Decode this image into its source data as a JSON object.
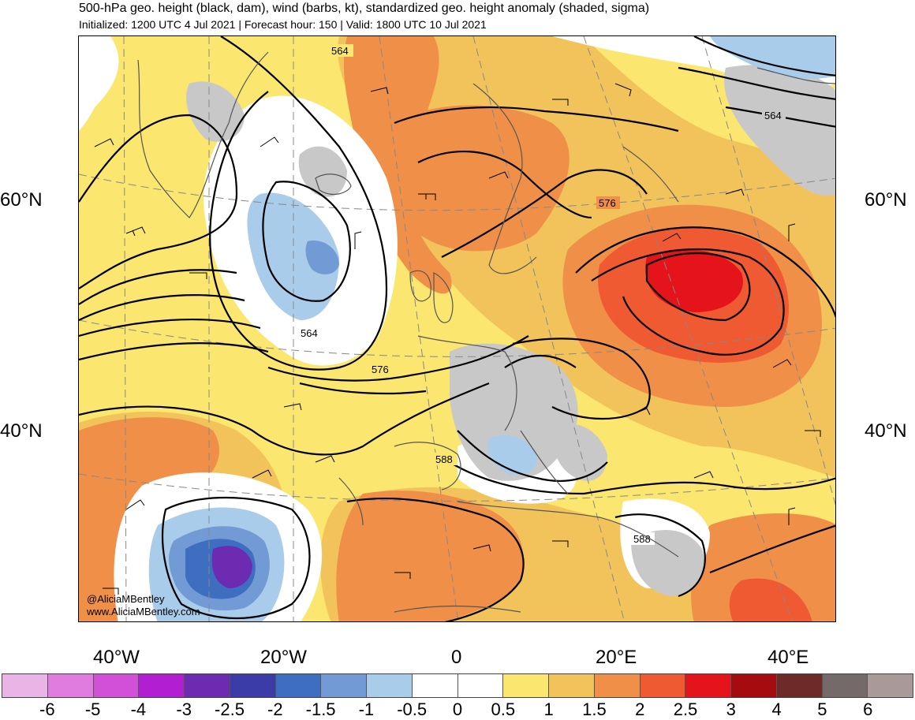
{
  "header": {
    "title": "500-hPa geo. height (black, dam), wind (barbs, kt), standardized geo. height anomaly (shaded, sigma)",
    "subtitle": "Initialized: 1200 UTC 4 Jul 2021 | Forecast hour: 150 | Valid: 1800 UTC 10 Jul 2021"
  },
  "map": {
    "lat_labels": [
      "60°N",
      "40°N"
    ],
    "lon_labels": [
      "40°W",
      "20°W",
      "0",
      "20°E",
      "40°E"
    ],
    "contour_labels": [
      "564",
      "564",
      "576",
      "564",
      "576",
      "588",
      "588"
    ],
    "credit_handle": "@AliciaMBentley",
    "credit_url": "www.AliciaMBentley.com"
  },
  "colorbar": {
    "ticks": [
      "-6",
      "-5",
      "-4",
      "-3",
      "-2.5",
      "-2",
      "-1.5",
      "-1",
      "-0.5",
      "0",
      "0.5",
      "1",
      "1.5",
      "2",
      "2.5",
      "3",
      "4",
      "5",
      "6"
    ],
    "colors": [
      "#e9b5e6",
      "#e07be0",
      "#d24fd8",
      "#b21ed1",
      "#6c2bb0",
      "#3c3ca8",
      "#3d6ec0",
      "#729bd6",
      "#a8cce9",
      "#ffffff",
      "#ffffff",
      "#fbe66f",
      "#f3c35b",
      "#f09048",
      "#f05a32",
      "#e5141a",
      "#a50c10",
      "#6e2a28",
      "#756a6a",
      "#a99a99"
    ]
  }
}
